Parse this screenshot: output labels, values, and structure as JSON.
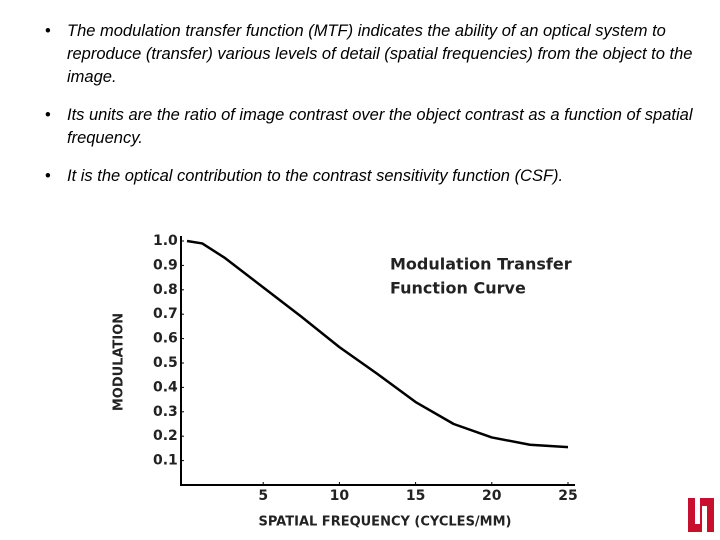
{
  "bullets": [
    "The modulation transfer function (MTF) indicates the ability of an optical system to reproduce (transfer) various levels of detail (spatial frequencies) from the object to the image.",
    "Its units are the ratio of image contrast over the object contrast as a function of spatial frequency.",
    "It is the optical contribution to the contrast sensitivity function (CSF)."
  ],
  "chart_data": {
    "type": "line",
    "annotation": [
      "Modulation Transfer",
      "Function Curve"
    ],
    "x_label": "SPATIAL FREQUENCY (CYCLES/MM)",
    "y_label": "MODULATION",
    "x": [
      0,
      1,
      2.5,
      5,
      7.5,
      10,
      12.5,
      15,
      17.5,
      20,
      22.5,
      25
    ],
    "series": [
      {
        "color": "#000000",
        "values": [
          1.0,
          0.99,
          0.93,
          0.81,
          0.69,
          0.565,
          0.455,
          0.34,
          0.25,
          0.195,
          0.165,
          0.155
        ]
      }
    ],
    "xlim": [
      0,
      25
    ],
    "xticks": [
      5,
      10,
      15,
      20,
      25
    ],
    "ylim": [
      0,
      1
    ],
    "yticks": [
      0.1,
      0.2,
      0.3,
      0.4,
      0.5,
      0.6,
      0.7,
      0.8,
      0.9,
      {
        "value": 1,
        "label": "1.0"
      }
    ]
  }
}
